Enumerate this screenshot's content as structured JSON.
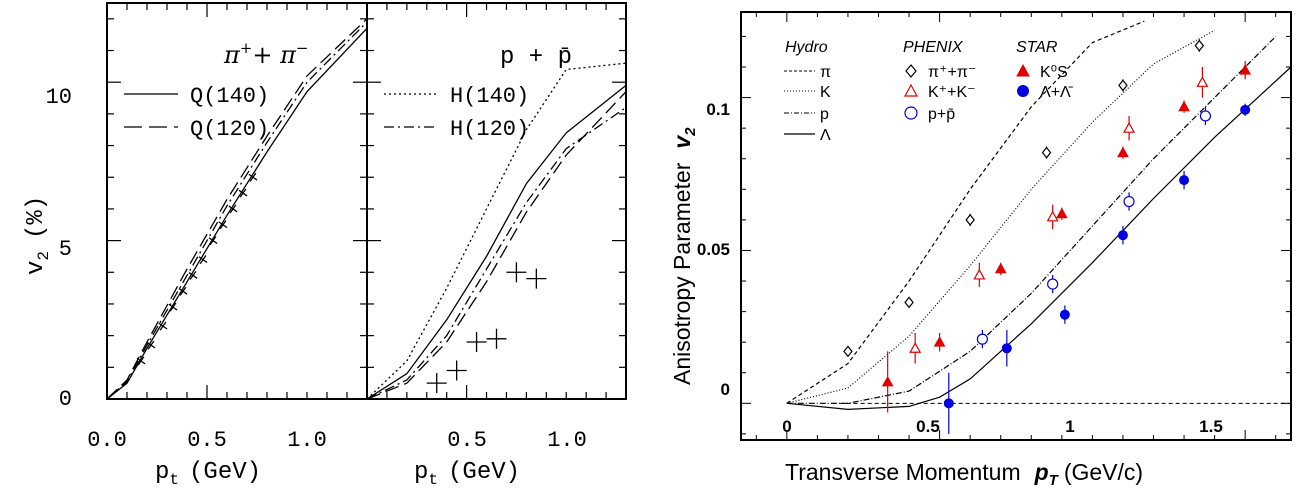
{
  "chart_data": [
    {
      "type": "line",
      "panel": "left",
      "xlabel": "p",
      "xlabel_sub": "t",
      "xlabel_unit": "(GeV)",
      "ylabel": "v",
      "ylabel_sub": "2",
      "ylabel_unit": "(%)",
      "xlim": [
        0,
        1.3
      ],
      "ylim": [
        0,
        12.5
      ],
      "xticks": [
        "0.0",
        "0.5",
        "1.0"
      ],
      "xtick_values": [
        0,
        0.5,
        1.0
      ],
      "yticks": [
        "0",
        "5",
        "10"
      ],
      "ytick_values": [
        0,
        5,
        10
      ],
      "annotation": {
        "base": "π",
        "sup1": "+",
        "mid": "+ π",
        "sup2": "−"
      },
      "legend": [
        {
          "label": "Q(140)",
          "style": "solid"
        },
        {
          "label": "Q(120)",
          "style": "dashed"
        }
      ],
      "series": [
        {
          "name": "Q(140)",
          "style": "solid",
          "x": [
            0,
            0.1,
            0.2,
            0.4,
            0.6,
            0.8,
            1.0,
            1.3
          ],
          "y": [
            0,
            0.5,
            1.6,
            3.7,
            5.8,
            7.8,
            9.7,
            11.7
          ]
        },
        {
          "name": "Q(120)",
          "style": "dashed",
          "x": [
            0,
            0.1,
            0.2,
            0.4,
            0.6,
            0.8,
            1.0,
            1.3
          ],
          "y": [
            0,
            0.6,
            1.8,
            4.1,
            6.3,
            8.3,
            10.2,
            12.0
          ]
        },
        {
          "name": "",
          "style": "dashdot",
          "x": [
            0,
            0.1,
            0.2,
            0.4,
            0.6,
            0.8,
            1.0,
            1.3
          ],
          "y": [
            0,
            0.55,
            1.7,
            3.9,
            6.1,
            8.1,
            10.0,
            11.9
          ]
        },
        {
          "name": "",
          "style": "markers",
          "x": [
            0.17,
            0.22,
            0.28,
            0.33,
            0.38,
            0.43,
            0.48,
            0.53,
            0.58,
            0.63,
            0.68,
            0.73
          ],
          "y": [
            1.2,
            1.7,
            2.3,
            2.9,
            3.4,
            3.9,
            4.4,
            5.0,
            5.5,
            6.0,
            6.5,
            7.0
          ]
        }
      ]
    },
    {
      "type": "line",
      "panel": "middle",
      "xlabel": "p",
      "xlabel_sub": "t",
      "xlabel_unit": "(GeV)",
      "xlim": [
        0,
        1.3
      ],
      "ylim": [
        0,
        12.5
      ],
      "xticks": [
        "0.5",
        "1.0"
      ],
      "xtick_values": [
        0.5,
        1.0
      ],
      "annotation": {
        "text": "p + p̄"
      },
      "legend": [
        {
          "label": "H(140)",
          "style": "dotted"
        },
        {
          "label": "H(120)",
          "style": "dashdot"
        }
      ],
      "series": [
        {
          "name": "H(140)",
          "style": "dotted",
          "x": [
            0,
            0.2,
            0.4,
            0.6,
            0.8,
            1.0,
            1.3
          ],
          "y": [
            0,
            1.2,
            3.5,
            6.0,
            8.5,
            10.4,
            10.6
          ]
        },
        {
          "name": "H(120)",
          "style": "dashdot",
          "x": [
            0,
            0.2,
            0.4,
            0.6,
            0.8,
            1.0,
            1.3
          ],
          "y": [
            0,
            0.6,
            2.0,
            4.1,
            6.2,
            7.9,
            9.2
          ]
        },
        {
          "name": "",
          "style": "solid",
          "x": [
            0,
            0.2,
            0.4,
            0.6,
            0.8,
            1.0,
            1.3
          ],
          "y": [
            0,
            0.8,
            2.5,
            4.5,
            6.8,
            8.4,
            9.9
          ]
        },
        {
          "name": "",
          "style": "dashed",
          "x": [
            0,
            0.2,
            0.4,
            0.6,
            0.8,
            1.0,
            1.3
          ],
          "y": [
            0,
            0.5,
            1.8,
            3.7,
            5.9,
            7.7,
            9.7
          ]
        },
        {
          "name": "",
          "style": "markers",
          "x": [
            0.35,
            0.45,
            0.55,
            0.65,
            0.75,
            0.85
          ],
          "y": [
            0.5,
            0.9,
            1.8,
            1.9,
            4.0,
            3.8
          ]
        }
      ]
    },
    {
      "type": "scatter",
      "panel": "right",
      "xlabel": "Transverse Momentum",
      "xlabel_var": "p",
      "xlabel_sub": "T",
      "xlabel_unit": "(GeV/c)",
      "ylabel": "Anisotropy Parameter",
      "ylabel_var": "v",
      "ylabel_sub": "2",
      "xlim": [
        -0.15,
        1.65
      ],
      "ylim": [
        -0.012,
        0.128
      ],
      "xticks": [
        "0",
        "0.5",
        "1",
        "1.5"
      ],
      "xtick_values": [
        0,
        0.5,
        1,
        1.5
      ],
      "yticks": [
        "0",
        "0.05",
        "0.1"
      ],
      "ytick_values": [
        0,
        0.05,
        0.1
      ],
      "legend_groups": [
        {
          "title": "Hydro",
          "entries": [
            "π",
            "K",
            "p",
            "Λ"
          ]
        },
        {
          "title": "PHENIX",
          "entries": [
            "π⁺+π⁻",
            "K⁺+K⁻",
            "p+p̄"
          ]
        },
        {
          "title": "STAR",
          "entries": [
            "K⁰S",
            "Λ+Λ̄"
          ]
        }
      ],
      "hydro_curves": [
        {
          "name": "π",
          "style": "dashed",
          "x": [
            0,
            0.2,
            0.4,
            0.6,
            0.8,
            1.0,
            1.17
          ],
          "y": [
            0,
            0.013,
            0.04,
            0.07,
            0.097,
            0.118,
            0.125
          ]
        },
        {
          "name": "K",
          "style": "dotted",
          "x": [
            0,
            0.2,
            0.4,
            0.6,
            0.8,
            1.0,
            1.2,
            1.4
          ],
          "y": [
            0,
            0.005,
            0.022,
            0.045,
            0.07,
            0.092,
            0.111,
            0.122
          ]
        },
        {
          "name": "p",
          "style": "dashdot",
          "x": [
            0,
            0.2,
            0.4,
            0.6,
            0.8,
            1.0,
            1.2,
            1.4,
            1.6
          ],
          "y": [
            0,
            0.0,
            0.004,
            0.017,
            0.036,
            0.058,
            0.08,
            0.1,
            0.12
          ]
        },
        {
          "name": "Λ",
          "style": "solid",
          "x": [
            0,
            0.2,
            0.4,
            0.5,
            0.6,
            0.8,
            1.0,
            1.2,
            1.4,
            1.65
          ],
          "y": [
            0,
            -0.002,
            -0.001,
            0.002,
            0.008,
            0.026,
            0.046,
            0.067,
            0.087,
            0.11
          ]
        }
      ],
      "series": [
        {
          "name": "π⁺+π⁻",
          "experiment": "PHENIX",
          "marker": "open-diamond",
          "color": "#000000",
          "x": [
            0.2,
            0.4,
            0.6,
            0.85,
            1.1,
            1.35
          ],
          "y": [
            0.017,
            0.033,
            0.06,
            0.082,
            0.104,
            0.117
          ],
          "err": [
            0.001,
            0.001,
            0.002,
            0.002,
            0.002,
            0.002
          ]
        },
        {
          "name": "K⁺+K⁻",
          "experiment": "PHENIX",
          "marker": "open-triangle",
          "color": "#e00000",
          "x": [
            0.42,
            0.63,
            0.87,
            1.12,
            1.36
          ],
          "y": [
            0.018,
            0.042,
            0.061,
            0.09,
            0.105
          ],
          "err": [
            0.005,
            0.004,
            0.004,
            0.004,
            0.005
          ]
        },
        {
          "name": "p+p̄",
          "experiment": "PHENIX",
          "marker": "open-circle",
          "color": "#0000e0",
          "x": [
            0.64,
            0.87,
            1.12,
            1.37
          ],
          "y": [
            0.021,
            0.039,
            0.066,
            0.094
          ],
          "err": [
            0.003,
            0.003,
            0.003,
            0.003
          ]
        },
        {
          "name": "K⁰S",
          "experiment": "STAR",
          "marker": "filled-triangle",
          "color": "#e00000",
          "x": [
            0.33,
            0.5,
            0.7,
            0.9,
            1.1,
            1.3,
            1.5
          ],
          "y": [
            0.007,
            0.02,
            0.044,
            0.062,
            0.082,
            0.097,
            0.109
          ],
          "err": [
            0.01,
            0.003,
            0.002,
            0.002,
            0.002,
            0.002,
            0.003
          ]
        },
        {
          "name": "Λ+Λ̄",
          "experiment": "STAR",
          "marker": "filled-circle",
          "color": "#0000e0",
          "x": [
            0.53,
            0.72,
            0.91,
            1.1,
            1.3,
            1.5
          ],
          "y": [
            0.0,
            0.018,
            0.029,
            0.055,
            0.073,
            0.096
          ],
          "err": [
            0.01,
            0.006,
            0.003,
            0.003,
            0.003,
            0.002
          ]
        }
      ]
    }
  ]
}
